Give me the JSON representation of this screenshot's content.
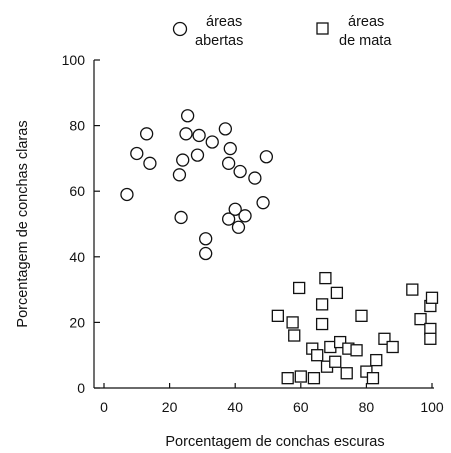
{
  "chart_data": {
    "type": "scatter",
    "xlabel": "Porcentagem de conchas escuras",
    "ylabel": "Porcentagem de conchas claras",
    "xlim": [
      0,
      100
    ],
    "ylim": [
      0,
      100
    ],
    "xticks": [
      "0",
      "20",
      "40",
      "60",
      "80",
      "100"
    ],
    "yticks": [
      "0",
      "20",
      "40",
      "60",
      "80",
      "100"
    ],
    "grid": false,
    "legend": "top",
    "series": [
      {
        "name_lines": [
          "áreas",
          "abertas"
        ],
        "marker": "circle",
        "points": [
          [
            7,
            59
          ],
          [
            10,
            71.5
          ],
          [
            13,
            77.5
          ],
          [
            14,
            68.5
          ],
          [
            23,
            65
          ],
          [
            24,
            69.5
          ],
          [
            25,
            77.5
          ],
          [
            25.5,
            83
          ],
          [
            23.5,
            52
          ],
          [
            28.5,
            71
          ],
          [
            29,
            77
          ],
          [
            33,
            75
          ],
          [
            37,
            79
          ],
          [
            38,
            68.5
          ],
          [
            38.5,
            73
          ],
          [
            38,
            51.5
          ],
          [
            40,
            54.5
          ],
          [
            41,
            49
          ],
          [
            41.5,
            66
          ],
          [
            43,
            52.5
          ],
          [
            46,
            64
          ],
          [
            48.5,
            56.5
          ],
          [
            49.5,
            70.5
          ],
          [
            31,
            45.5
          ],
          [
            31,
            41
          ]
        ]
      },
      {
        "name_lines": [
          "áreas",
          "de mata"
        ],
        "marker": "square",
        "points": [
          [
            53,
            22
          ],
          [
            56,
            3
          ],
          [
            57.5,
            20
          ],
          [
            58,
            16
          ],
          [
            59.5,
            30.5
          ],
          [
            60,
            3.5
          ],
          [
            63.5,
            12
          ],
          [
            64,
            3
          ],
          [
            65,
            10
          ],
          [
            66.5,
            25.5
          ],
          [
            66.5,
            19.5
          ],
          [
            67.5,
            33.5
          ],
          [
            68,
            6.5
          ],
          [
            69,
            12.5
          ],
          [
            70.5,
            8
          ],
          [
            71,
            29
          ],
          [
            72,
            14
          ],
          [
            74,
            4.5
          ],
          [
            74.5,
            12
          ],
          [
            77,
            11.5
          ],
          [
            78.5,
            22
          ],
          [
            80,
            5
          ],
          [
            82,
            3
          ],
          [
            83,
            8.5
          ],
          [
            85.5,
            15
          ],
          [
            88,
            12.5
          ],
          [
            94,
            30
          ],
          [
            96.5,
            21
          ],
          [
            99.5,
            18
          ],
          [
            99.5,
            15
          ],
          [
            99.5,
            25
          ],
          [
            100,
            27.5
          ]
        ]
      }
    ]
  }
}
